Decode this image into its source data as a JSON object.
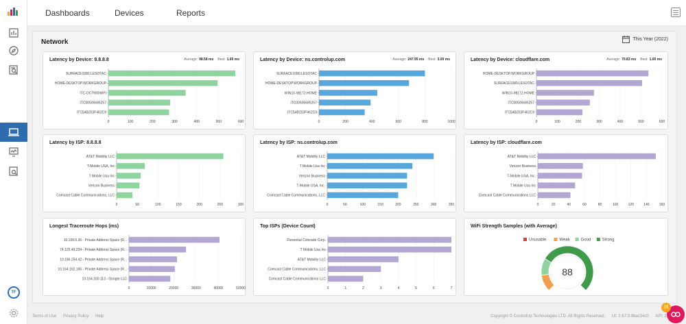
{
  "app": {
    "nav": [
      "Dashboards",
      "Devices",
      "Reports"
    ],
    "avatar_initials": "TF",
    "brand_colors": {
      "accent": "#2e6bb1",
      "green": "#8fd49f",
      "blue": "#57a7dc",
      "purple": "#b3a6d3"
    }
  },
  "panel": {
    "title": "Network",
    "date_range": "This Year (2022)"
  },
  "footer": {
    "links": [
      "Terms of Use",
      "Privacy Policy",
      "Help"
    ],
    "copyright": "Copyright © ControlUp Technologies LTD. All Rights Reserved.",
    "ui_version": "UI: 2.67.0.9bac34c0",
    "api_version": "API: 2.58.0.0",
    "help_badge": "15"
  },
  "chart_data": [
    {
      "id": "lat-dev-1",
      "type": "bar",
      "title": "Latency by Device: 8.8.8.8",
      "stats": {
        "avg_label": "Average:",
        "avg": "98.58 ms",
        "best_label": "Best:",
        "best": "1.00 ms"
      },
      "categories": [
        "SURFACE1080.LESOTAC",
        "HOME-DESKTOP.WORKGROUP",
        "ITC-DC7900WIFI",
        "ITC00505685257",
        "ITC54B203F462C9"
      ],
      "values": [
        575,
        495,
        350,
        280,
        275
      ],
      "xlim": [
        0,
        600
      ],
      "xticks": [
        0,
        100,
        200,
        300,
        400,
        500,
        600
      ],
      "color": "#8fd49f"
    },
    {
      "id": "lat-dev-2",
      "type": "bar",
      "title": "Latency by Device: ns.controlup.com",
      "stats": {
        "avg_label": "Average:",
        "avg": "247.95 ms",
        "best_label": "Best:",
        "best": "3.00 ms"
      },
      "categories": [
        "SURFACE1080.LESOTAC",
        "HOME-DESKTOP.WORKGROUP",
        "WIN10-98172.HOME",
        "ITC00505685257",
        "ITC54B203F462C9"
      ],
      "values": [
        800,
        680,
        440,
        390,
        345
      ],
      "xlim": [
        0,
        1000
      ],
      "xticks": [
        0,
        200,
        400,
        600,
        800,
        1000
      ],
      "color": "#57a7dc"
    },
    {
      "id": "lat-dev-3",
      "type": "bar",
      "title": "Latency by Device: cloudflare.com",
      "stats": {
        "avg_label": "Average:",
        "avg": "70.83 ms",
        "best_label": "Best:",
        "best": "1.00 ms"
      },
      "categories": [
        "HOME-DESKTOP.WORKGROUP",
        "SURFACE1080.LESOTAC",
        "WIN10-98172.HOME",
        "ITC00505685257",
        "ITC54B203F462C9"
      ],
      "values": [
        535,
        505,
        275,
        255,
        220
      ],
      "xlim": [
        0,
        600
      ],
      "xticks": [
        0,
        100,
        200,
        300,
        400,
        500,
        600
      ],
      "color": "#b3a6d3"
    },
    {
      "id": "lat-isp-1",
      "type": "bar",
      "title": "Latency by ISP: 8.8.8.8",
      "categories": [
        "AT&T Mobility LLC",
        "T-Mobile USA, Inc",
        "T Mobile Usa Inc",
        "Verizon Business",
        "Comcast Cable Communications, LLC"
      ],
      "values": [
        258,
        68,
        58,
        55,
        38
      ],
      "xlim": [
        0,
        300
      ],
      "xticks": [
        0,
        50,
        100,
        150,
        200,
        250,
        300
      ],
      "color": "#8fd49f"
    },
    {
      "id": "lat-isp-2",
      "type": "bar",
      "title": "Latency by ISP: ns.controlup.com",
      "categories": [
        "AT&T Mobility LLC",
        "T Mobile Usa Inc",
        "Verizon Business",
        "T-Mobile USA, Inc.",
        "Comcast Cable Communications, LLC"
      ],
      "values": [
        300,
        240,
        225,
        225,
        200
      ],
      "xlim": [
        0,
        350
      ],
      "xticks": [
        0,
        50,
        100,
        150,
        200,
        250,
        300,
        350
      ],
      "color": "#57a7dc"
    },
    {
      "id": "lat-isp-3",
      "type": "bar",
      "title": "Latency by ISP: cloudflare.com",
      "categories": [
        "AT&T Mobility LLC",
        "Verizon Business",
        "T-Mobile USA, Inc.",
        "T Mobile Usa Inc",
        "Comcast Cable Communications LLC"
      ],
      "values": [
        152,
        58,
        57,
        48,
        42
      ],
      "xlim": [
        0,
        160
      ],
      "xticks": [
        0,
        20,
        40,
        60,
        80,
        100,
        120,
        140,
        160
      ],
      "color": "#b3a6d3"
    },
    {
      "id": "traceroute",
      "type": "bar",
      "title": "Longest Traceroute Hops (ms)",
      "categories": [
        "10.100.0.36 - Private Address Space (R...",
        "74.125.49.234 - Private Address Space (R...",
        "10.186.254.42 - Private Address Space (R...",
        "10.164.162.165 - Private Address Space (R...",
        "10.164.160.113 - Google LLC"
      ],
      "values": [
        40500,
        25500,
        21500,
        20500,
        18500
      ],
      "xlim": [
        0,
        50000
      ],
      "xticks": [
        0,
        10000,
        20000,
        30000,
        40000,
        50000
      ],
      "color": "#b3a6d3"
    },
    {
      "id": "top-isps",
      "type": "bar",
      "title": "Top ISPs (Device Count)",
      "categories": [
        "Flexential Colorado Corp.",
        "T Mobile Usa Inc",
        "AT&T Mobility LLC",
        "Comcast Cable Communications, LLC",
        "Comcast Cable Communications LLC"
      ],
      "values": [
        7,
        7,
        4,
        3,
        2
      ],
      "xlim": [
        0,
        7
      ],
      "xticks": [
        0,
        1,
        2,
        3,
        4,
        5,
        6,
        7
      ],
      "color": "#b3a6d3"
    },
    {
      "id": "wifi",
      "type": "pie",
      "title": "WiFi Strength Samples (with Average)",
      "legend": [
        {
          "name": "Unusable",
          "color": "#e03a3a"
        },
        {
          "name": "Weak",
          "color": "#f0a050"
        },
        {
          "name": "Good",
          "color": "#8fd49f"
        },
        {
          "name": "Strong",
          "color": "#3f9a4a"
        }
      ],
      "slices": [
        {
          "name": "Unusable",
          "value": 0
        },
        {
          "name": "Weak",
          "value": 14
        },
        {
          "name": "Good",
          "value": 14
        },
        {
          "name": "Strong",
          "value": 72
        }
      ],
      "center_value": "88"
    }
  ]
}
